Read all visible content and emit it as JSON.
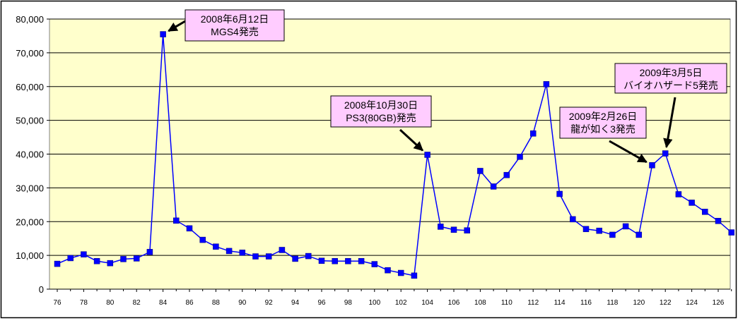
{
  "chart_data": {
    "type": "line",
    "title": "",
    "xlabel": "",
    "ylabel": "",
    "ylim": [
      0,
      80000
    ],
    "yticks": [
      "0",
      "10,000",
      "20,000",
      "30,000",
      "40,000",
      "50,000",
      "60,000",
      "70,000",
      "80,000"
    ],
    "xticks": [
      "76",
      "78",
      "80",
      "82",
      "84",
      "86",
      "88",
      "90",
      "92",
      "94",
      "96",
      "98",
      "100",
      "102",
      "104",
      "106",
      "108",
      "110",
      "112",
      "114",
      "116",
      "118",
      "120",
      "122",
      "124",
      "126"
    ],
    "grid": true,
    "colors": {
      "plot_bg": "#ffffcc",
      "line": "#0000ff",
      "marker": "#0000ff",
      "callout_bg": "#ffccff",
      "frame": "#000000"
    },
    "series": [
      {
        "x": [
          76,
          77,
          78,
          79,
          80,
          81,
          82,
          83,
          84,
          85,
          86,
          87,
          88,
          89,
          90,
          91,
          92,
          93,
          94,
          95,
          96,
          97,
          98,
          99,
          100,
          101,
          102,
          103,
          104,
          105,
          106,
          107,
          108,
          109,
          110,
          111,
          112,
          113,
          114,
          115,
          116,
          117,
          118,
          119,
          120,
          121,
          122,
          123,
          124,
          125,
          126,
          127
        ],
        "values": [
          7500,
          9200,
          10300,
          8300,
          7700,
          8900,
          9100,
          11000,
          75500,
          20300,
          18000,
          14600,
          12600,
          11300,
          10800,
          9700,
          9700,
          11600,
          9000,
          9800,
          8400,
          8300,
          8300,
          8300,
          7400,
          5600,
          4800,
          4000,
          39800,
          18500,
          17600,
          17400,
          35000,
          30400,
          33800,
          39200,
          46100,
          60700,
          28200,
          20700,
          17800,
          17300,
          16100,
          18600,
          16100,
          36700,
          40200,
          28100,
          25600,
          22900,
          20200,
          16800
        ]
      }
    ],
    "annotations": [
      {
        "lines": [
          "2008年6月12日",
          "MGS4発売"
        ],
        "x": 84,
        "y": 75500
      },
      {
        "lines": [
          "2008年10月30日",
          "PS3(80GB)発売"
        ],
        "x": 104,
        "y": 39800
      },
      {
        "lines": [
          "2009年2月26日",
          "龍が如く3発売"
        ],
        "x": 121,
        "y": 36700
      },
      {
        "lines": [
          "2009年3月5日",
          "バイオハザード5発売"
        ],
        "x": 122,
        "y": 40200
      }
    ]
  }
}
